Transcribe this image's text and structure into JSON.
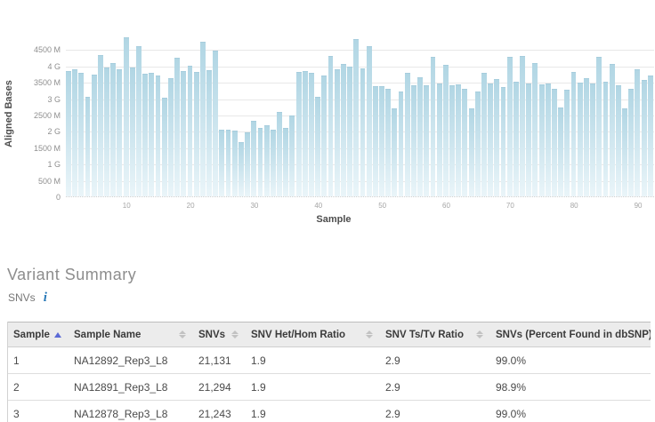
{
  "chart_data": {
    "type": "bar",
    "title": "",
    "xlabel": "Sample",
    "ylabel": "Aligned Bases",
    "units": "bases (G = gigabases, M = megabases)",
    "ylim_g": [
      0,
      5
    ],
    "grid": true,
    "legend": "none",
    "y_tick_labels": [
      "0",
      "500 M",
      "1 G",
      "1500 M",
      "2 G",
      "2500 M",
      "3 G",
      "3500 M",
      "4 G",
      "4500 M"
    ],
    "y_tick_values_g": [
      0,
      0.5,
      1,
      1.5,
      2,
      2.5,
      3,
      3.5,
      4,
      4.5
    ],
    "x_tick_labels": [
      "10",
      "20",
      "30",
      "40",
      "50",
      "60",
      "70",
      "80",
      "90"
    ],
    "x_tick_values": [
      10,
      20,
      30,
      40,
      50,
      60,
      70,
      80,
      90
    ],
    "x": "sample index 1..92",
    "values_g": [
      3.83,
      3.88,
      3.79,
      3.05,
      3.72,
      4.32,
      3.94,
      4.08,
      3.88,
      4.86,
      3.94,
      4.59,
      3.76,
      3.78,
      3.7,
      3.03,
      3.61,
      4.23,
      3.82,
      3.99,
      3.8,
      4.74,
      3.86,
      4.47,
      2.03,
      2.05,
      2.02,
      1.65,
      1.96,
      2.3,
      2.1,
      2.18,
      2.05,
      2.57,
      2.1,
      2.48,
      3.8,
      3.83,
      3.77,
      3.05,
      3.7,
      4.3,
      3.88,
      4.06,
      3.97,
      4.81,
      3.9,
      4.58,
      3.36,
      3.38,
      3.28,
      2.68,
      3.2,
      3.78,
      3.4,
      3.63,
      3.4,
      4.26,
      3.45,
      4.03,
      3.4,
      3.42,
      3.3,
      2.68,
      3.2,
      3.78,
      3.45,
      3.6,
      3.35,
      4.27,
      3.5,
      4.3,
      3.45,
      4.08,
      3.42,
      3.45,
      3.3,
      2.72,
      3.25,
      3.8,
      3.48,
      3.62,
      3.45,
      4.28,
      3.5,
      4.05,
      3.4,
      2.7,
      3.3,
      3.88,
      3.55,
      3.7
    ],
    "bar_color_top": "#b1d6e4",
    "bar_color_bottom": "#eaf5f9"
  },
  "section": {
    "title": "Variant Summary",
    "subtitle": "SNVs",
    "info_glyph": "i",
    "info_color": "#2979b8"
  },
  "table": {
    "sorted_column": "Sample",
    "sorted_direction": "asc",
    "sort_arrow_color": "#5b6ad6",
    "columns": [
      {
        "label": "Sample",
        "width": 68,
        "sort": "asc"
      },
      {
        "label": "Sample Name",
        "width": 140,
        "sort": "both"
      },
      {
        "label": "SNVs",
        "width": 59,
        "sort": "both"
      },
      {
        "label": "SNV Het/Hom Ratio",
        "width": 151,
        "sort": "both"
      },
      {
        "label": "SNV Ts/Tv Ratio",
        "width": 124,
        "sort": "both"
      },
      {
        "label": "SNVs (Percent Found in dbSNP)",
        "width": 180,
        "sort": "none"
      }
    ],
    "rows": [
      [
        "1",
        "NA12892_Rep3_L8",
        "21,131",
        "1.9",
        "2.9",
        "99.0%"
      ],
      [
        "2",
        "NA12891_Rep3_L8",
        "21,294",
        "1.9",
        "2.9",
        "98.9%"
      ],
      [
        "3",
        "NA12878_Rep3_L8",
        "21,243",
        "1.9",
        "2.9",
        "99.0%"
      ]
    ]
  }
}
